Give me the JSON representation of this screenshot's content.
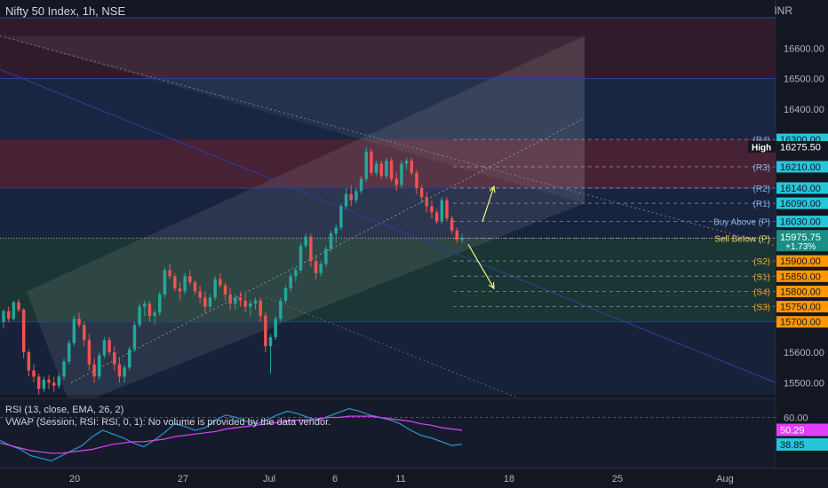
{
  "header": {
    "symbol": "Nifty 50 Index, 1h, NSE",
    "currency": "INR"
  },
  "colors": {
    "bg": "#131722",
    "axis_text": "#b2b5be",
    "up": "#26a69a",
    "down": "#ef5350",
    "resistance_zone": "#4a2236",
    "support_zone": "#1c3b36",
    "rsi": "#2b95d6",
    "rsi_ema": "#e040fb",
    "arrow": "#f5f57a",
    "current_price_bg": "#1b8e83",
    "blue_label_bg": "#26c6da",
    "orange_label_bg": "#ff9800",
    "yellow_label_bg": "#ffeb3b",
    "magenta_label_bg": "#e040fb"
  },
  "chart_data": [
    {
      "type": "candlestick",
      "title": "Nifty 50 Index, 1h, NSE",
      "x_tick_labels": [
        "20",
        "27",
        "Jul",
        "6",
        "11",
        "18",
        "25",
        "Aug"
      ],
      "y_tick_labels": [
        "16600.00",
        "16500.00",
        "16400.00",
        "15600.00",
        "15500.00"
      ],
      "y_range": [
        15460,
        16700
      ],
      "currency": "INR",
      "current_price": {
        "value": "15975.75",
        "change": "+1.73%"
      },
      "levels": [
        {
          "name": "(R4)",
          "value": "16300.00",
          "badge": "blue"
        },
        {
          "name": "High",
          "value": "16275.50",
          "badge": "navy"
        },
        {
          "name": "(R3)",
          "value": "16210.00",
          "badge": "blue"
        },
        {
          "name": "(R2)",
          "value": "16140.00",
          "badge": "blue"
        },
        {
          "name": "(R1)",
          "value": "16090.00",
          "badge": "blue"
        },
        {
          "name": "Buy Above (P)",
          "value": "16030.00",
          "badge": "blue"
        },
        {
          "name": "Sell Below (P)",
          "value": "15975.00",
          "badge": "yellow"
        },
        {
          "name": "(S2)",
          "value": "15900.00",
          "badge": "orange"
        },
        {
          "name": "(S1)",
          "value": "15850.00",
          "badge": "orange"
        },
        {
          "name": "(S4)",
          "value": "15800.00",
          "badge": "orange"
        },
        {
          "name": "(S3)",
          "value": "15750.00",
          "badge": "orange"
        },
        {
          "name": "",
          "value": "15700.00",
          "badge": "orange"
        }
      ],
      "candles": [
        [
          15700,
          15740,
          15680,
          15735
        ],
        [
          15735,
          15750,
          15700,
          15710
        ],
        [
          15710,
          15770,
          15705,
          15765
        ],
        [
          15765,
          15775,
          15730,
          15740
        ],
        [
          15740,
          15745,
          15580,
          15600
        ],
        [
          15600,
          15610,
          15520,
          15540
        ],
        [
          15540,
          15560,
          15500,
          15520
        ],
        [
          15520,
          15530,
          15460,
          15480
        ],
        [
          15480,
          15520,
          15470,
          15510
        ],
        [
          15510,
          15525,
          15480,
          15500
        ],
        [
          15500,
          15520,
          15470,
          15490
        ],
        [
          15490,
          15530,
          15480,
          15520
        ],
        [
          15520,
          15580,
          15510,
          15570
        ],
        [
          15570,
          15640,
          15560,
          15630
        ],
        [
          15630,
          15720,
          15620,
          15710
        ],
        [
          15710,
          15730,
          15680,
          15690
        ],
        [
          15690,
          15700,
          15620,
          15640
        ],
        [
          15640,
          15660,
          15540,
          15560
        ],
        [
          15560,
          15580,
          15500,
          15520
        ],
        [
          15520,
          15600,
          15510,
          15590
        ],
        [
          15590,
          15650,
          15580,
          15640
        ],
        [
          15640,
          15650,
          15590,
          15600
        ],
        [
          15600,
          15620,
          15540,
          15560
        ],
        [
          15560,
          15580,
          15500,
          15520
        ],
        [
          15520,
          15560,
          15500,
          15550
        ],
        [
          15550,
          15620,
          15540,
          15610
        ],
        [
          15610,
          15700,
          15600,
          15690
        ],
        [
          15690,
          15760,
          15680,
          15750
        ],
        [
          15750,
          15770,
          15720,
          15760
        ],
        [
          15760,
          15770,
          15700,
          15720
        ],
        [
          15720,
          15740,
          15690,
          15730
        ],
        [
          15730,
          15800,
          15720,
          15790
        ],
        [
          15790,
          15880,
          15780,
          15870
        ],
        [
          15870,
          15890,
          15840,
          15850
        ],
        [
          15850,
          15860,
          15800,
          15810
        ],
        [
          15810,
          15830,
          15770,
          15800
        ],
        [
          15800,
          15860,
          15790,
          15850
        ],
        [
          15850,
          15870,
          15820,
          15830
        ],
        [
          15830,
          15840,
          15790,
          15800
        ],
        [
          15800,
          15820,
          15760,
          15780
        ],
        [
          15780,
          15800,
          15730,
          15750
        ],
        [
          15750,
          15790,
          15740,
          15780
        ],
        [
          15780,
          15850,
          15770,
          15840
        ],
        [
          15840,
          15860,
          15810,
          15820
        ],
        [
          15820,
          15830,
          15770,
          15790
        ],
        [
          15790,
          15810,
          15740,
          15760
        ],
        [
          15760,
          15790,
          15740,
          15780
        ],
        [
          15780,
          15800,
          15750,
          15770
        ],
        [
          15770,
          15790,
          15730,
          15750
        ],
        [
          15750,
          15770,
          15720,
          15760
        ],
        [
          15760,
          15780,
          15740,
          15770
        ],
        [
          15770,
          15780,
          15700,
          15720
        ],
        [
          15720,
          15730,
          15600,
          15620
        ],
        [
          15620,
          15660,
          15530,
          15650
        ],
        [
          15650,
          15720,
          15640,
          15710
        ],
        [
          15710,
          15780,
          15700,
          15770
        ],
        [
          15770,
          15820,
          15760,
          15810
        ],
        [
          15810,
          15860,
          15800,
          15850
        ],
        [
          15850,
          15880,
          15830,
          15870
        ],
        [
          15870,
          15960,
          15860,
          15950
        ],
        [
          15950,
          15990,
          15940,
          15980
        ],
        [
          15980,
          15990,
          15880,
          15900
        ],
        [
          15900,
          15920,
          15840,
          15860
        ],
        [
          15860,
          15900,
          15850,
          15890
        ],
        [
          15890,
          15950,
          15880,
          15940
        ],
        [
          15940,
          16000,
          15930,
          15990
        ],
        [
          15990,
          16020,
          15960,
          16010
        ],
        [
          16010,
          16090,
          16000,
          16080
        ],
        [
          16080,
          16140,
          16070,
          16120
        ],
        [
          16120,
          16150,
          16080,
          16100
        ],
        [
          16100,
          16140,
          16090,
          16130
        ],
        [
          16130,
          16180,
          16120,
          16170
        ],
        [
          16170,
          16275,
          16160,
          16260
        ],
        [
          16260,
          16270,
          16180,
          16190
        ],
        [
          16190,
          16230,
          16180,
          16220
        ],
        [
          16220,
          16230,
          16170,
          16180
        ],
        [
          16180,
          16240,
          16170,
          16230
        ],
        [
          16230,
          16240,
          16160,
          16170
        ],
        [
          16170,
          16190,
          16130,
          16150
        ],
        [
          16150,
          16230,
          16140,
          16220
        ],
        [
          16220,
          16240,
          16200,
          16230
        ],
        [
          16230,
          16240,
          16180,
          16190
        ],
        [
          16190,
          16200,
          16120,
          16140
        ],
        [
          16140,
          16150,
          16090,
          16110
        ],
        [
          16110,
          16130,
          16060,
          16080
        ],
        [
          16080,
          16100,
          16040,
          16060
        ],
        [
          16060,
          16070,
          16020,
          16030
        ],
        [
          16030,
          16110,
          16020,
          16100
        ],
        [
          16100,
          16110,
          16030,
          16040
        ],
        [
          16040,
          16050,
          15990,
          16000
        ],
        [
          16000,
          16010,
          15960,
          15970
        ],
        [
          15970,
          15990,
          15960,
          15975
        ]
      ]
    },
    {
      "type": "line",
      "title": "RSI (13, close, EMA, 26, 2)",
      "subtitle": "VWAP (Session, RSI: RSI, 0, 1): No volume is provided by the data vendor.",
      "y_tick_labels": [
        "60.00"
      ],
      "series": [
        {
          "name": "RSI",
          "color": "#2b95d6",
          "last_value": "38.85",
          "values": [
            42,
            38,
            35,
            30,
            28,
            26,
            30,
            34,
            38,
            45,
            50,
            47,
            44,
            40,
            37,
            42,
            48,
            55,
            53,
            50,
            52,
            58,
            62,
            60,
            57,
            55,
            58,
            62,
            65,
            63,
            60,
            58,
            61,
            64,
            67,
            65,
            62,
            60,
            58,
            55,
            50,
            46,
            44,
            41,
            38,
            39
          ]
        },
        {
          "name": "EMA",
          "color": "#e040fb",
          "last_value": "50.29",
          "values": [
            40,
            38,
            36,
            34,
            33,
            32,
            32,
            33,
            34,
            35,
            37,
            39,
            40,
            41,
            41,
            42,
            43,
            45,
            46,
            47,
            48,
            49,
            51,
            52,
            53,
            54,
            55,
            56,
            57,
            58,
            58,
            59,
            60,
            60,
            61,
            61,
            61,
            60,
            59,
            58,
            57,
            55,
            54,
            52,
            51,
            50
          ]
        }
      ]
    }
  ]
}
